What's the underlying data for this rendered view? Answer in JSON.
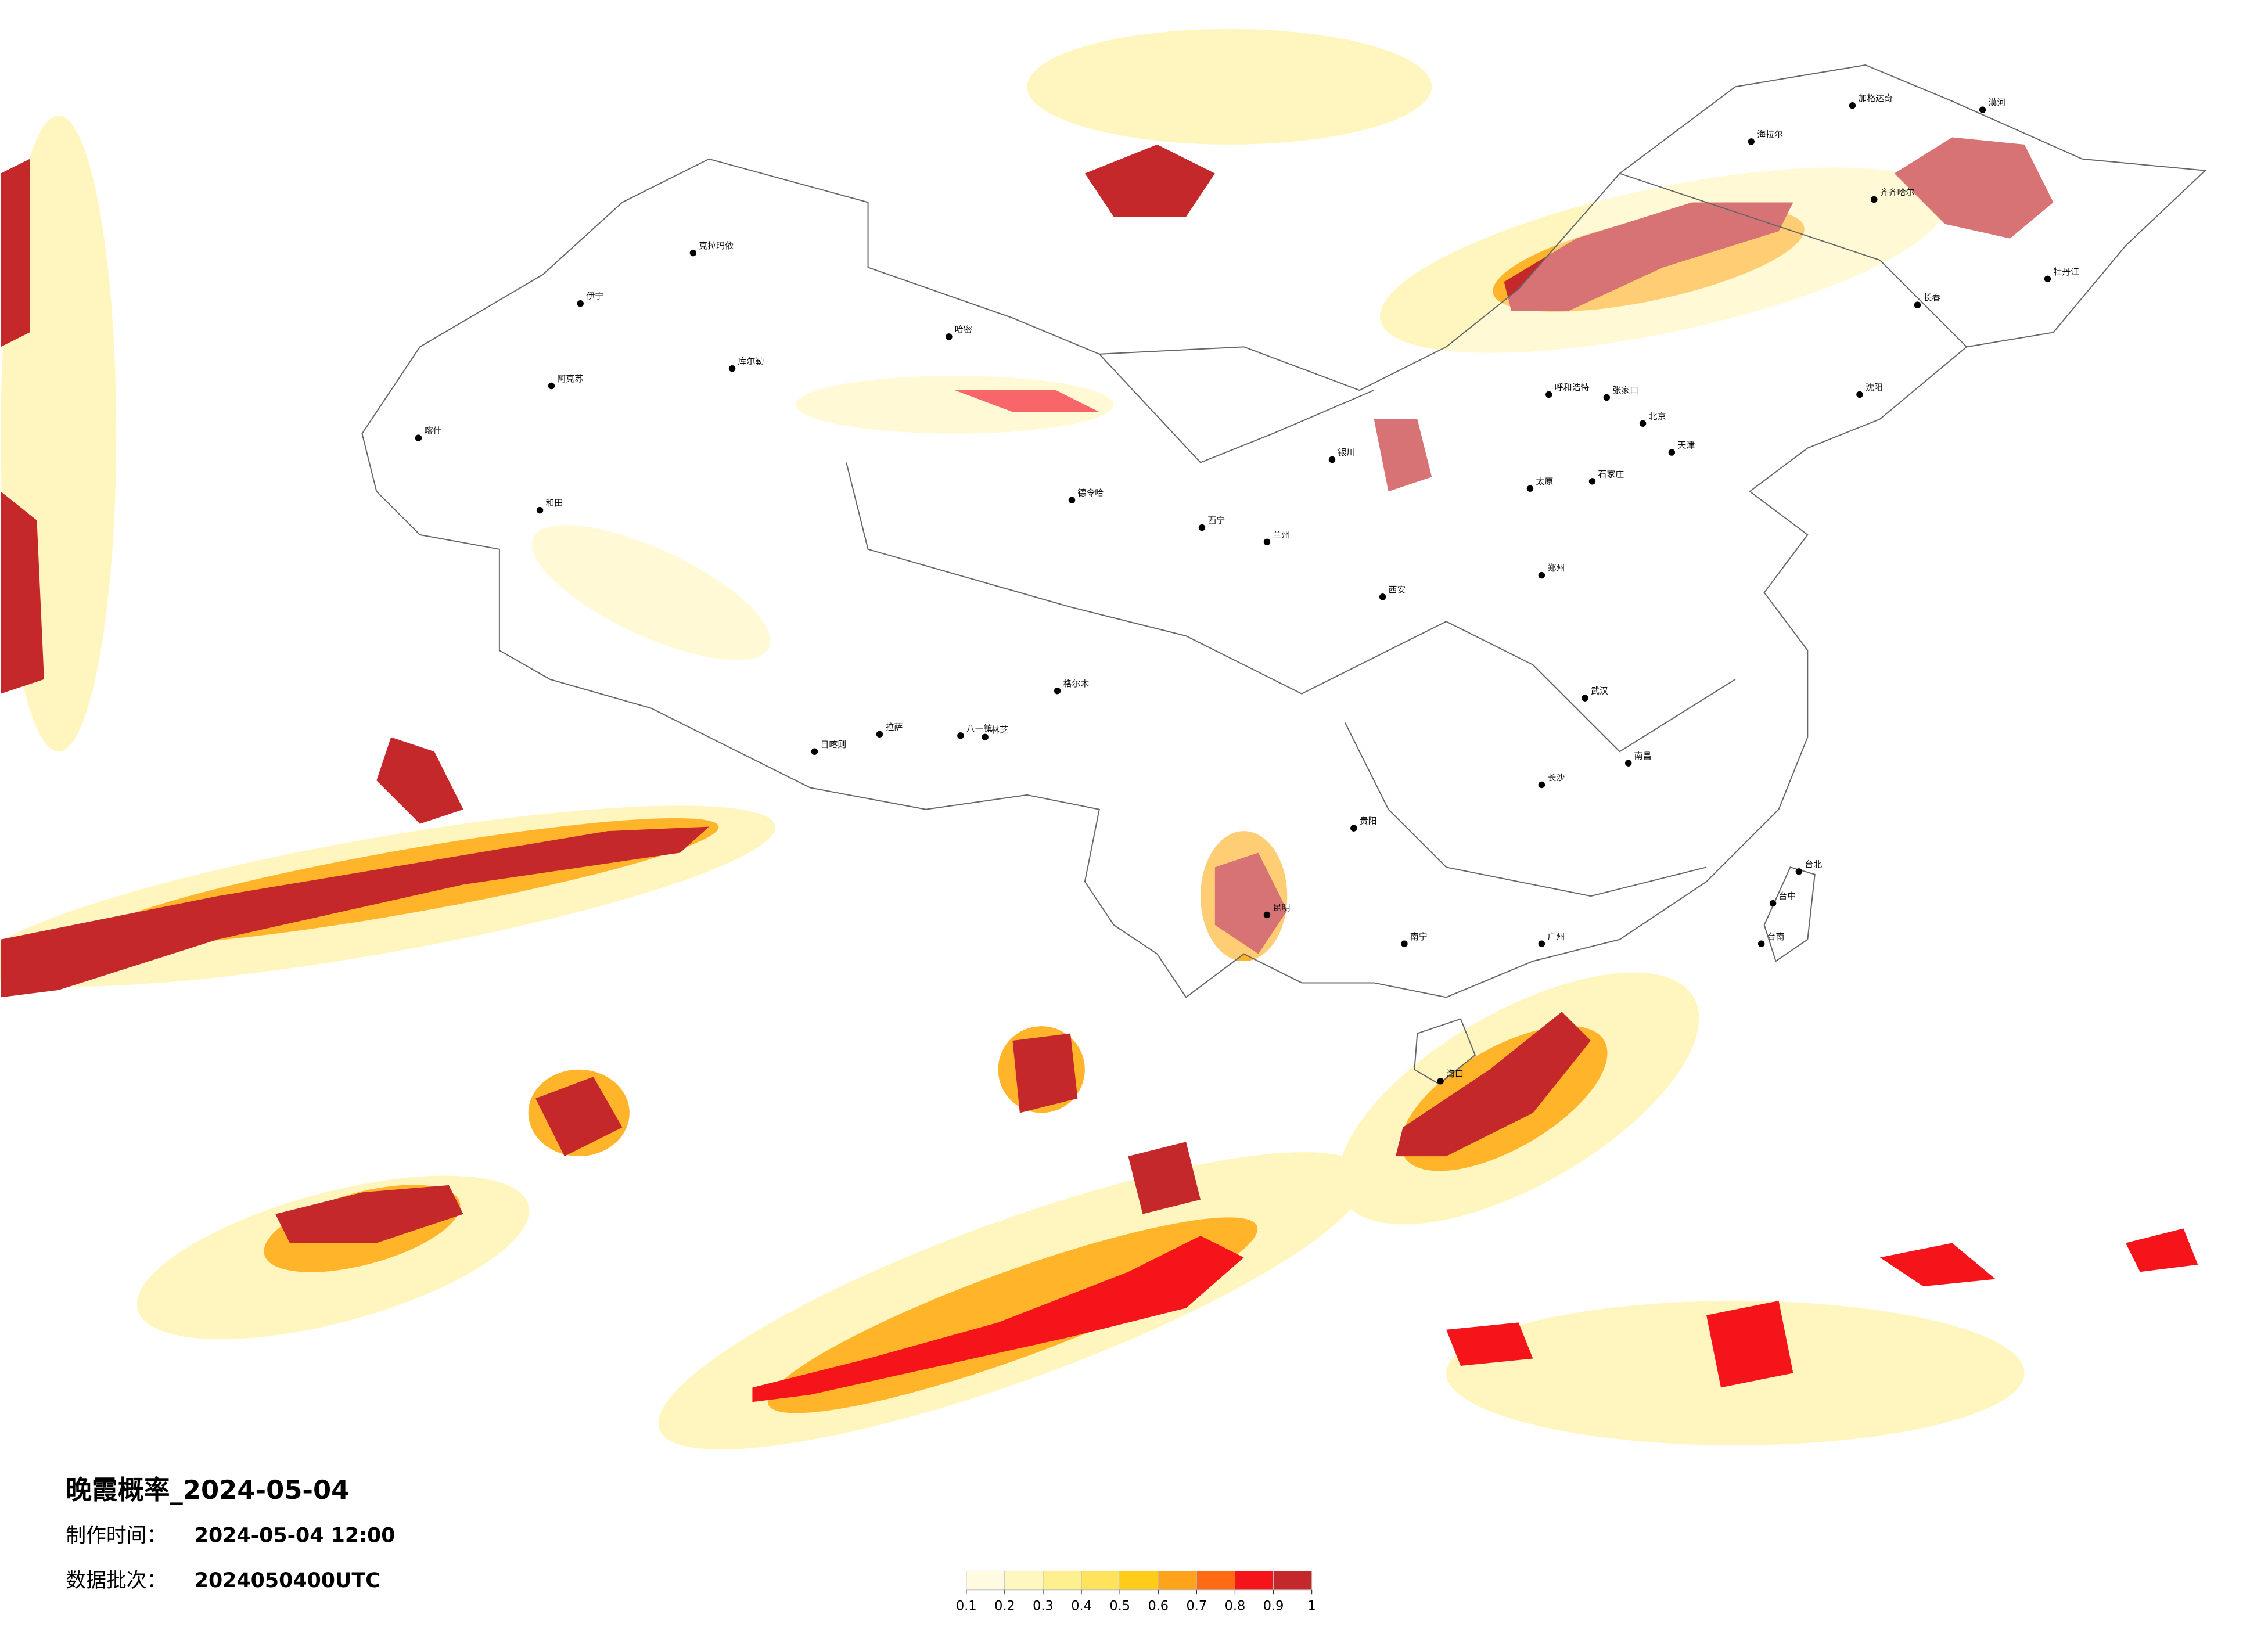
{
  "header": {
    "title": "晚霞概率_2024-05-04",
    "made_label": "制作时间：",
    "made_time": "2024-05-04 12:00",
    "batch_label": "数据批次：",
    "batch": "2024050400UTC"
  },
  "colorbar": {
    "ticks": [
      0.1,
      0.2,
      0.3,
      0.4,
      0.5,
      0.6,
      0.7,
      0.8,
      0.9,
      1
    ],
    "colors": [
      "#fffbe3",
      "#fff7c0",
      "#fff08f",
      "#ffe35c",
      "#ffcc1a",
      "#ffa31a",
      "#ff6a13",
      "#f5141a",
      "#c4282b"
    ]
  },
  "cities": [
    "漠河",
    "加格达奇",
    "海拉尔",
    "齐齐哈尔",
    "牡丹江",
    "长春",
    "沈阳",
    "克拉玛依",
    "伊宁",
    "库尔勒",
    "阿克苏",
    "喀什",
    "和田",
    "哈密",
    "德令哈",
    "格尔木",
    "日喀则",
    "拉萨",
    "八一镇",
    "林芝",
    "呼和浩特",
    "张家口",
    "北京",
    "天津",
    "石家庄",
    "太原",
    "银川",
    "西宁",
    "兰州",
    "西安",
    "郑州",
    "武汉",
    "长沙",
    "南昌",
    "贵阳",
    "昆明",
    "南宁",
    "广州",
    "海口",
    "台北",
    "台中",
    "台南"
  ]
}
